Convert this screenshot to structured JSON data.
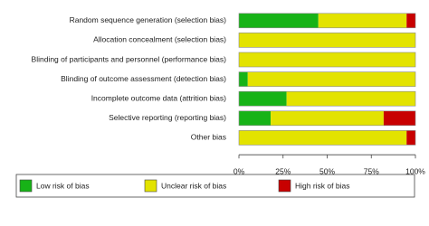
{
  "chart_data": {
    "type": "stacked-barh",
    "categories": [
      "Random sequence generation (selection bias)",
      "Allocation concealment (selection bias)",
      "Blinding of participants and personnel (performance bias)",
      "Blinding of outcome assessment (detection bias)",
      "Incomplete outcome data (attrition bias)",
      "Selective reporting (reporting bias)",
      "Other bias"
    ],
    "series": [
      {
        "name": "Low risk of bias",
        "color": "#17b317",
        "values": [
          45,
          0,
          0,
          5,
          27,
          18,
          0
        ]
      },
      {
        "name": "Unclear risk of bias",
        "color": "#e3e300",
        "values": [
          50,
          100,
          100,
          95,
          73,
          64,
          95
        ]
      },
      {
        "name": "High risk of bias",
        "color": "#c80000",
        "values": [
          5,
          0,
          0,
          0,
          0,
          18,
          5
        ]
      }
    ],
    "xlim": [
      0,
      100
    ],
    "xticks": [
      {
        "value": 0,
        "label": "0%"
      },
      {
        "value": 25,
        "label": "25%"
      },
      {
        "value": 50,
        "label": "50%"
      },
      {
        "value": 75,
        "label": "75%"
      },
      {
        "value": 100,
        "label": "100%"
      }
    ],
    "legend": "bottom"
  }
}
